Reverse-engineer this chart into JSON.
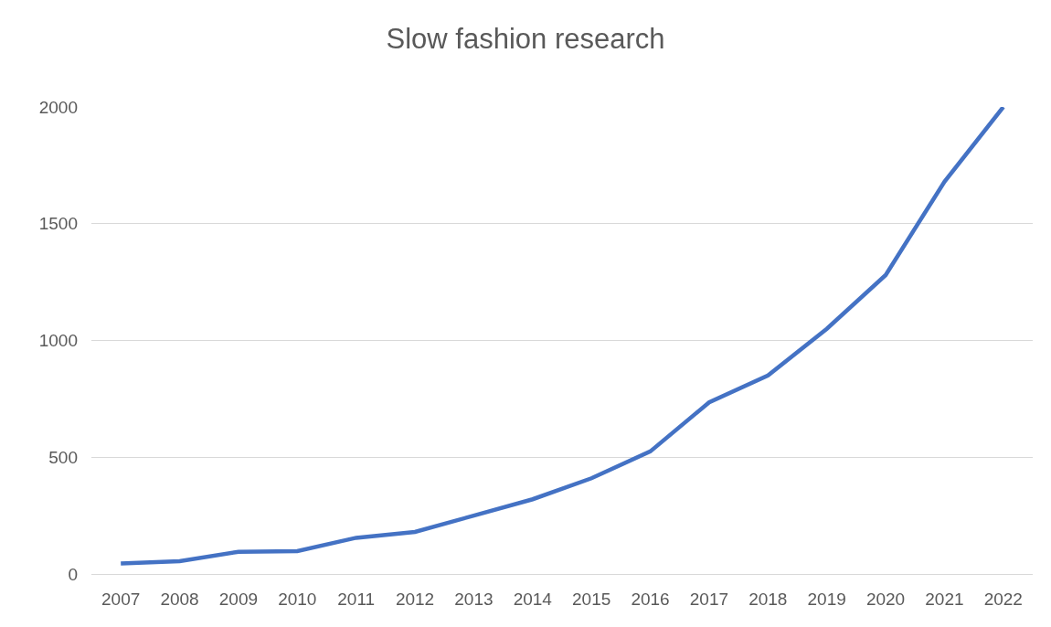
{
  "chart_data": {
    "type": "line",
    "title": "Slow fashion research",
    "categories": [
      "2007",
      "2008",
      "2009",
      "2010",
      "2011",
      "2012",
      "2013",
      "2014",
      "2015",
      "2016",
      "2017",
      "2018",
      "2019",
      "2020",
      "2021",
      "2022"
    ],
    "series": [
      {
        "color": "#4472c4",
        "values": [
          45,
          55,
          95,
          98,
          155,
          180,
          250,
          320,
          410,
          525,
          735,
          850,
          1050,
          1280,
          1680,
          2000
        ]
      }
    ],
    "ylim": [
      0,
      2000
    ],
    "yticks": [
      0,
      500,
      1000,
      1500,
      2000
    ],
    "grid": "y",
    "marker": "none",
    "line_style": "solid"
  }
}
